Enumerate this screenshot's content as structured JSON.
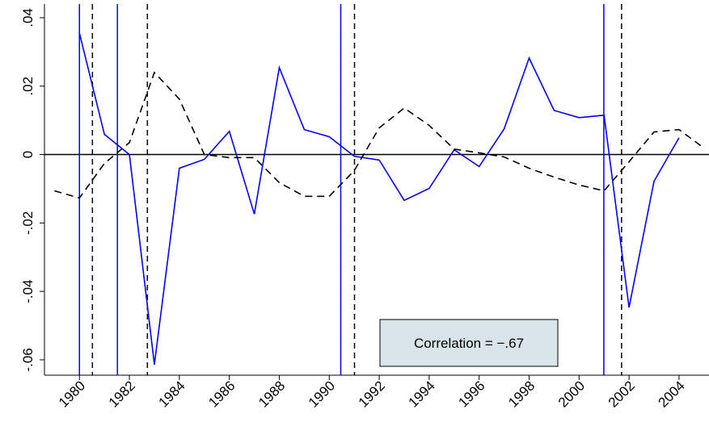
{
  "chart_data": {
    "type": "line",
    "annotation": "Correlation = −.67",
    "x": [
      1979,
      1980,
      1981,
      1982,
      1983,
      1984,
      1985,
      1986,
      1987,
      1988,
      1989,
      1990,
      1991,
      1992,
      1993,
      1994,
      1995,
      1996,
      1997,
      1998,
      1999,
      2000,
      2001,
      2002,
      2003,
      2004,
      2005
    ],
    "series": [
      {
        "color": "#0000ff",
        "dash": false,
        "values": [
          null,
          0.0355,
          0.0059,
          0,
          -0.0614,
          -0.004,
          -0.0014,
          0.0068,
          -0.0174,
          0.0254,
          0.0073,
          0.0052,
          -0.0005,
          -0.0016,
          -0.0134,
          -0.0099,
          0.0014,
          -0.0035,
          0.0075,
          0.0282,
          0.0129,
          0.0108,
          0.0115,
          -0.0447,
          -0.0078,
          0.0049,
          null
        ]
      },
      {
        "color": "#000000",
        "dash": true,
        "values": [
          -0.0106,
          -0.0127,
          -0.0026,
          0.0035,
          0.024,
          0.0162,
          0,
          -0.0009,
          -0.0009,
          -0.0082,
          -0.0122,
          -0.0122,
          -0.0047,
          0.0078,
          0.0136,
          0.0085,
          0.0016,
          0.0005,
          -0.0007,
          -0.004,
          -0.0066,
          -0.0089,
          -0.0106,
          -0.0021,
          0.0066,
          0.0073,
          0.0019
        ]
      }
    ],
    "vlines": [
      {
        "color": "#0000ff",
        "dash": false,
        "x": [
          1980.0,
          1981.52,
          1990.46,
          2000.99
        ]
      },
      {
        "color": "#000000",
        "dash": true,
        "x": [
          1980.52,
          1982.72,
          1991.01,
          2001.7
        ]
      }
    ],
    "reference_line": 0,
    "xlim": [
      1978.6,
      2005.2
    ],
    "xticks": [
      1980,
      1982,
      1984,
      1986,
      1988,
      1990,
      1992,
      1994,
      1996,
      1998,
      2000,
      2002,
      2004
    ],
    "ylim": [
      -0.0645,
      0.044
    ],
    "yticks": [
      {
        "value": -0.06,
        "label": "-.06"
      },
      {
        "value": -0.04,
        "label": "-.04"
      },
      {
        "value": -0.02,
        "label": "-.02"
      },
      0,
      {
        "value": 0.02,
        "label": ".02"
      },
      {
        "value": 0.04,
        "label": ".04"
      }
    ]
  }
}
